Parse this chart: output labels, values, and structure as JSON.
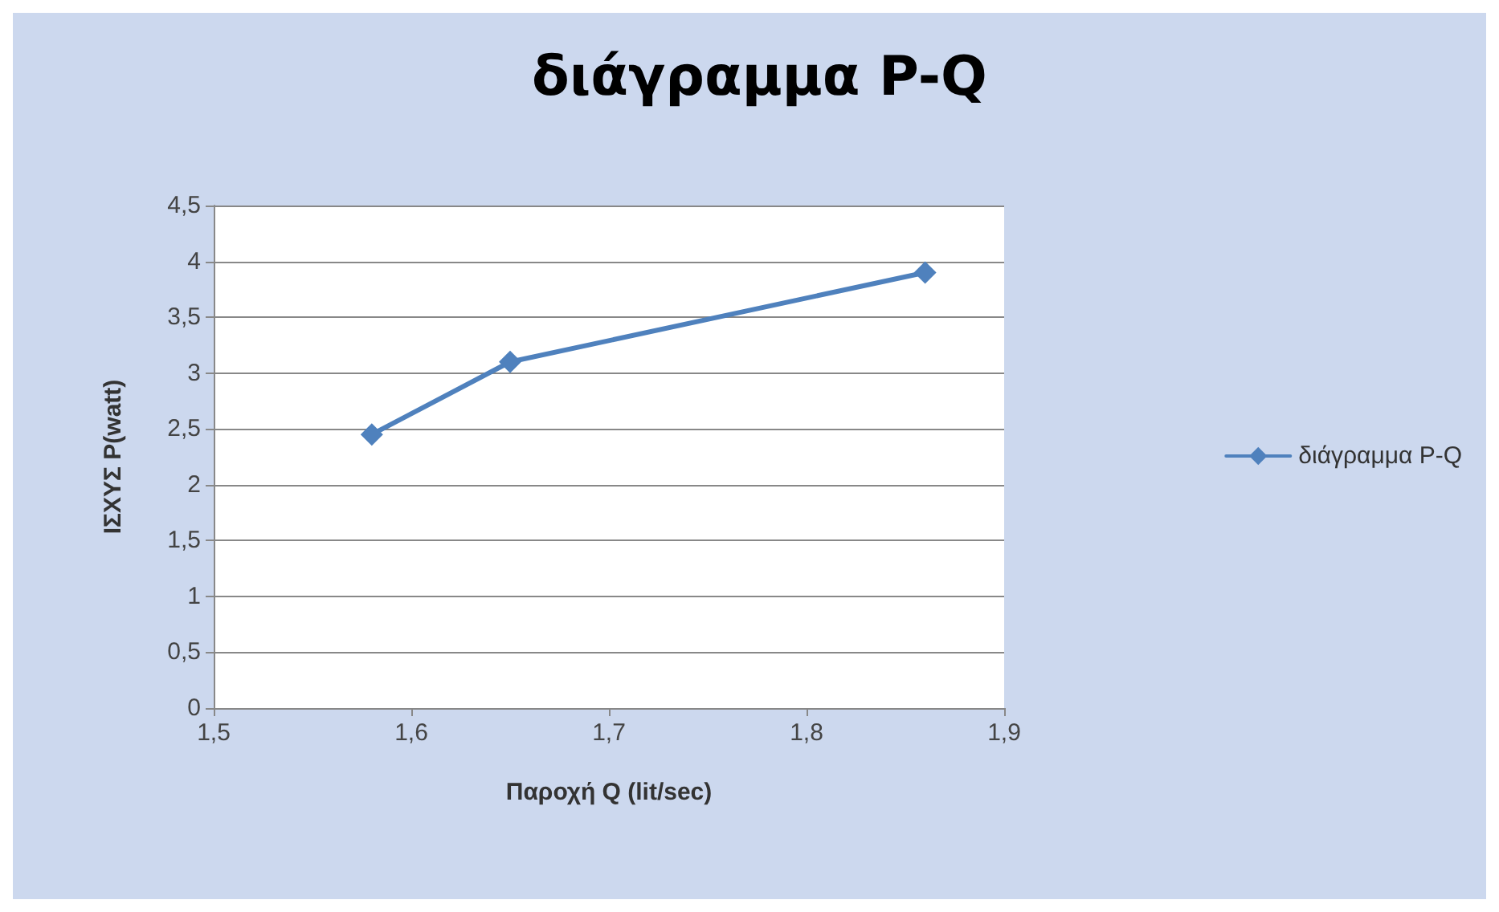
{
  "chart_data": {
    "type": "line",
    "title": "διάγραμμα P-Q",
    "xlabel": "Παροχή Q (lit/sec)",
    "ylabel": "ΙΣΧΥΣ P(watt)",
    "x": [
      1.58,
      1.65,
      1.86
    ],
    "series": [
      {
        "name": "διάγραμμα P-Q",
        "color": "#4f81bd",
        "values": [
          2.45,
          3.1,
          3.9
        ]
      }
    ],
    "xlim": [
      1.5,
      1.9
    ],
    "xticks": [
      {
        "value": 1.5,
        "label": "1,5"
      },
      {
        "value": 1.6,
        "label": "1,6"
      },
      {
        "value": 1.7,
        "label": "1,7"
      },
      {
        "value": 1.8,
        "label": "1,8"
      },
      {
        "value": 1.9,
        "label": "1,9"
      }
    ],
    "ylim": [
      0,
      4.5
    ],
    "yticks": [
      0,
      {
        "value": 0.5,
        "label": "0,5"
      },
      1,
      {
        "value": 1.5,
        "label": "1,5"
      },
      2,
      {
        "value": 2.5,
        "label": "2,5"
      },
      3,
      {
        "value": 3.5,
        "label": "3,5"
      },
      4,
      {
        "value": 4.5,
        "label": "4,5"
      }
    ],
    "grid": "y",
    "legend": "right",
    "marker": "diamond",
    "line_style": "solid"
  }
}
